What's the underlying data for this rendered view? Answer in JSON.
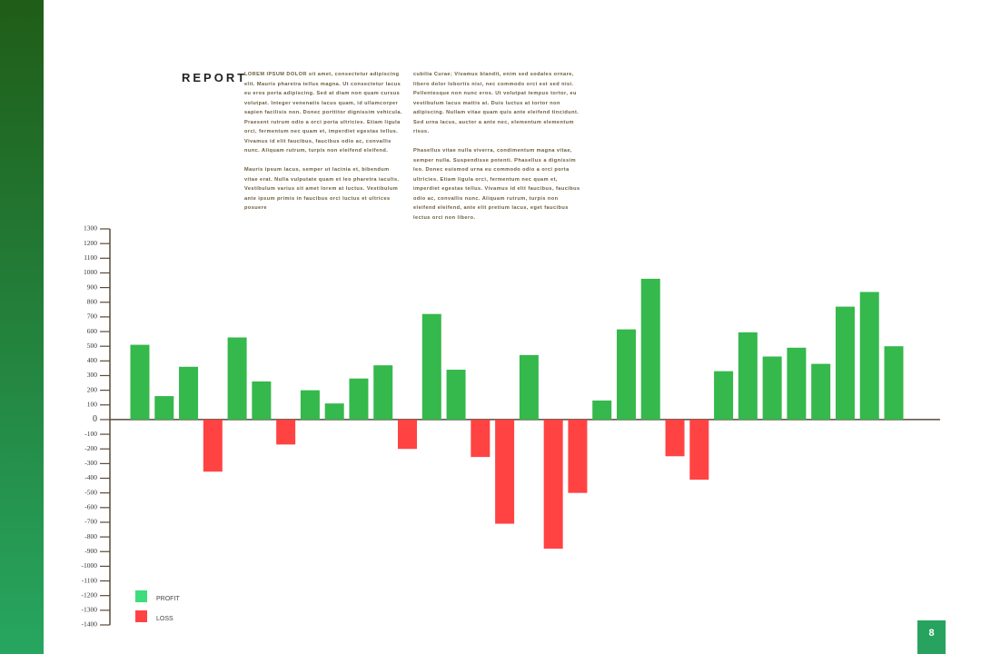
{
  "report": {
    "title": "REPORT",
    "columns": [
      [
        "LOREM IPSUM DOLOR sit amet, consectetur adipiscing elit. Mauris pharetra tellus magna. Ut consectetur lacus eu eros porta adipiscing. Sed at diam non quam cursus volutpat. Integer venenatis lacus quam, id ullamcorper sapien facilisis non. Donec porttitor dignissim vehicula. Praesent rutrum odio a orci porta ultricies. Etiam ligula orci, fermentum nec quam et, imperdiet egestas tellus. Vivamus id elit faucibus, faucibus odio ac, convallis nunc. Aliquam rutrum, turpis non eleifend eleifend.",
        "Mauris ipsum lacus, semper ut lacinia et, bibendum vitae erat. Nulla vulputate quam et leo pharetra iaculis. Vestibulum varius sit amet lorem at luctus. Vestibulum ante ipsum primis in faucibus orci luctus et ultrices posuere"
      ],
      [
        "cubilia Curae; Vivamus blandit, enim sed sodales ornare, libero dolor lobortis nisi, nec commodo orci est sed nisi. Pellentesque non nunc eros. Ut volutpat tempus tortor, eu vestibulum lacus mattis at. Duis luctus at tortor non adipiscing. Nullam vitae quam quis ante eleifend tincidunt. Sed urna lacus, auctor a ante nec, elementum elementum risus.",
        "Phasellus vitae nulla viverra, condimentum magna vitae, semper nulla. Suspendisse potenti. Phasellus a dignissim leo. Donec euismod urna eu commodo odio a orci porta ultricies. Etiam ligula orci, fermentum nec quam et, imperdiet egestas tellus. Vivamus id elit faucibus, faucibus odio ac, convallis nunc. Aliquam rutrum, turpis non eleifend eleifend, ante elit pretium lacus, eget faucibus lectus orci non libero."
      ]
    ]
  },
  "page_number": "8",
  "chart_data": {
    "type": "bar",
    "values": [
      510,
      160,
      360,
      -355,
      560,
      260,
      -170,
      200,
      110,
      280,
      370,
      -200,
      720,
      340,
      -255,
      -710,
      440,
      -880,
      -500,
      130,
      615,
      960,
      -250,
      -410,
      330,
      595,
      430,
      490,
      380,
      770,
      870,
      500
    ],
    "positive_color": "#35b84c",
    "negative_color": "#ff4343",
    "legend": [
      {
        "label": "PROFIT",
        "color": "#3ddc7c"
      },
      {
        "label": "LOSS",
        "color": "#ff4343"
      }
    ],
    "ylim": [
      -1400,
      1300
    ],
    "yticks": [
      -1400,
      -1300,
      -1200,
      -1100,
      -1000,
      -900,
      -800,
      -700,
      -600,
      -500,
      -400,
      -300,
      -200,
      -100,
      0,
      100,
      200,
      300,
      400,
      500,
      600,
      700,
      800,
      900,
      1000,
      1100,
      1200,
      1300
    ]
  }
}
